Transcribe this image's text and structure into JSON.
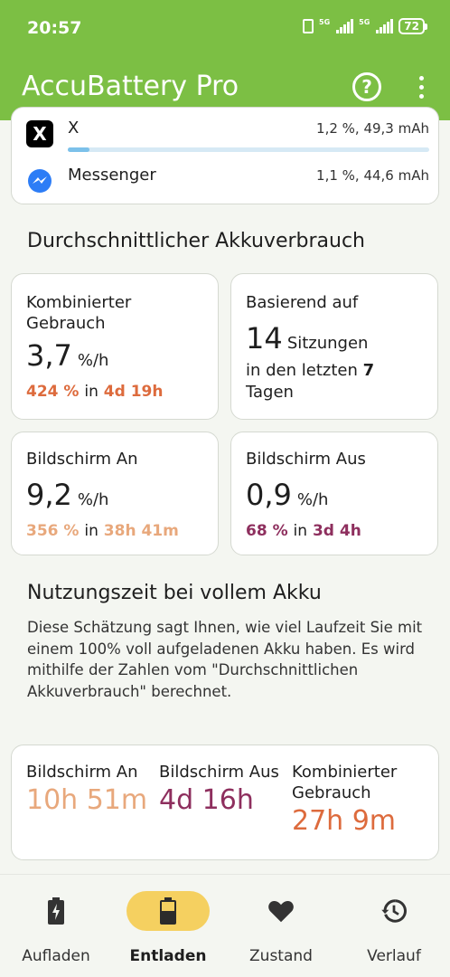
{
  "status_bar": {
    "time": "20:57",
    "network1": "5G",
    "network2": "5G",
    "battery": "72"
  },
  "app_bar": {
    "title": "AccuBattery Pro",
    "help_icon": "help-circle-icon",
    "menu_icon": "more-vert-icon"
  },
  "app_usage": [
    {
      "name": "X",
      "usage": "1,2 %, 49,3 mAh",
      "bar_fraction": 0.06,
      "icon": "x-logo-icon"
    },
    {
      "name": "Messenger",
      "usage": "1,1 %, 44,6 mAh",
      "bar_fraction": 0.05,
      "icon": "messenger-logo-icon"
    }
  ],
  "avg_section": {
    "title": "Durchschnittlicher Akkuverbrauch"
  },
  "cards": {
    "combined": {
      "label": "Kombinierter Gebrauch",
      "value": "3,7",
      "unit": "%/h",
      "sub_pct": "424 %",
      "sub_in": "in",
      "sub_time": "4d 19h"
    },
    "based": {
      "label": "Basierend auf",
      "count": "14",
      "sessions": "Sitzungen",
      "prefix": "in den letzten",
      "days": "7",
      "suffix": "Tagen"
    },
    "screen_on": {
      "label": "Bildschirm An",
      "value": "9,2",
      "unit": "%/h",
      "sub_pct": "356 %",
      "sub_in": "in",
      "sub_time": "38h 41m"
    },
    "screen_off": {
      "label": "Bildschirm Aus",
      "value": "0,9",
      "unit": "%/h",
      "sub_pct": "68 %",
      "sub_in": "in",
      "sub_time": "3d 4h"
    }
  },
  "full_section": {
    "title": "Nutzungszeit bei vollem Akku",
    "description": "Diese Schätzung sagt Ihnen, wie viel Laufzeit Sie mit einem 100% voll aufgeladenen Akku haben. Es wird mithilfe der Zahlen vom \"Durchschnittlichen Akkuverbrauch\" berechnet.",
    "screen_on": {
      "label": "Bildschirm An",
      "value": "10h 51m"
    },
    "screen_off": {
      "label": "Bildschirm Aus",
      "value": "4d 16h"
    },
    "combined": {
      "label": "Kombinierter Gebrauch",
      "value": "27h 9m"
    }
  },
  "colors": {
    "header": "#7cbf44",
    "orange": "#dd6b3d",
    "tan": "#e8a87c",
    "purple": "#8e2f5e",
    "active_pill": "#f5d060"
  },
  "bottom_nav": [
    {
      "label": "Aufladen",
      "icon": "battery-charging-icon",
      "active": false
    },
    {
      "label": "Entladen",
      "icon": "battery-discharging-icon",
      "active": true
    },
    {
      "label": "Zustand",
      "icon": "heart-icon",
      "active": false
    },
    {
      "label": "Verlauf",
      "icon": "history-icon",
      "active": false
    }
  ]
}
